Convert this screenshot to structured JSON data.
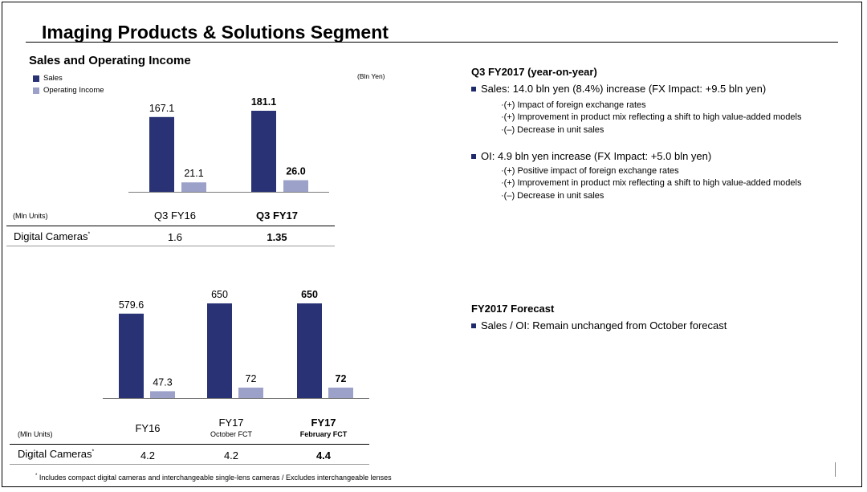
{
  "slide": {
    "title": "Imaging Products & Solutions Segment",
    "section_title": "Sales and Operating Income",
    "unit_note": "(Bln Yen)",
    "legend": [
      {
        "label": "Sales",
        "color": "#283275"
      },
      {
        "label": "Operating Income",
        "color": "#9ca1c9"
      }
    ],
    "table_units": "(Mln Units)",
    "row_label": "Digital Cameras",
    "row_mark": "*",
    "footnote_mark": "*",
    "footnote": "Includes compact digital cameras and interchangeable single-lens cameras / Excludes interchangeable lenses"
  },
  "chart_data": [
    {
      "type": "bar",
      "title": "Sales and Operating Income",
      "unit": "Bln Yen",
      "categories": [
        "Q3 FY16",
        "Q3 FY17"
      ],
      "series": [
        {
          "name": "Sales",
          "color": "#283275",
          "values": [
            167.1,
            181.1
          ],
          "labels": [
            "167.1",
            "181.1"
          ]
        },
        {
          "name": "Operating Income",
          "color": "#9ca1c9",
          "values": [
            21.1,
            26.0
          ],
          "labels": [
            "21.1",
            "26.0"
          ]
        }
      ],
      "bold_category": 1,
      "digital_cameras": [
        "1.6",
        "1.35"
      ]
    },
    {
      "type": "bar",
      "unit": "Bln Yen",
      "categories": [
        "FY16",
        "FY17",
        "FY17"
      ],
      "category_sub": [
        "",
        "October FCT",
        "February FCT"
      ],
      "series": [
        {
          "name": "Sales",
          "color": "#283275",
          "values": [
            579.6,
            650,
            650
          ],
          "labels": [
            "579.6",
            "650",
            "650"
          ]
        },
        {
          "name": "Operating Income",
          "color": "#9ca1c9",
          "values": [
            47.3,
            72,
            72
          ],
          "labels": [
            "47.3",
            "72",
            "72"
          ]
        }
      ],
      "bold_category": 2,
      "digital_cameras": [
        "4.2",
        "4.2",
        "4.4"
      ]
    }
  ],
  "right": {
    "q3_heading": "Q3 FY2017 (year-on-year)",
    "sales_bullet": "Sales: 14.0 bln yen (8.4%) increase (FX Impact: +9.5 bln yen)",
    "sales_points": [
      "·(+) Impact of foreign exchange rates",
      "·(+) Improvement in product mix reflecting a shift to high value-added models",
      "·(–) Decrease in unit sales"
    ],
    "oi_bullet": "OI: 4.9 bln yen increase (FX Impact: +5.0 bln yen)",
    "oi_points": [
      "·(+) Positive impact of foreign exchange rates",
      "·(+) Improvement in product mix reflecting a shift to high value-added models",
      "·(–) Decrease in unit sales"
    ],
    "forecast_heading": "FY2017 Forecast",
    "forecast_bullet": "Sales / OI: Remain unchanged from October forecast"
  }
}
